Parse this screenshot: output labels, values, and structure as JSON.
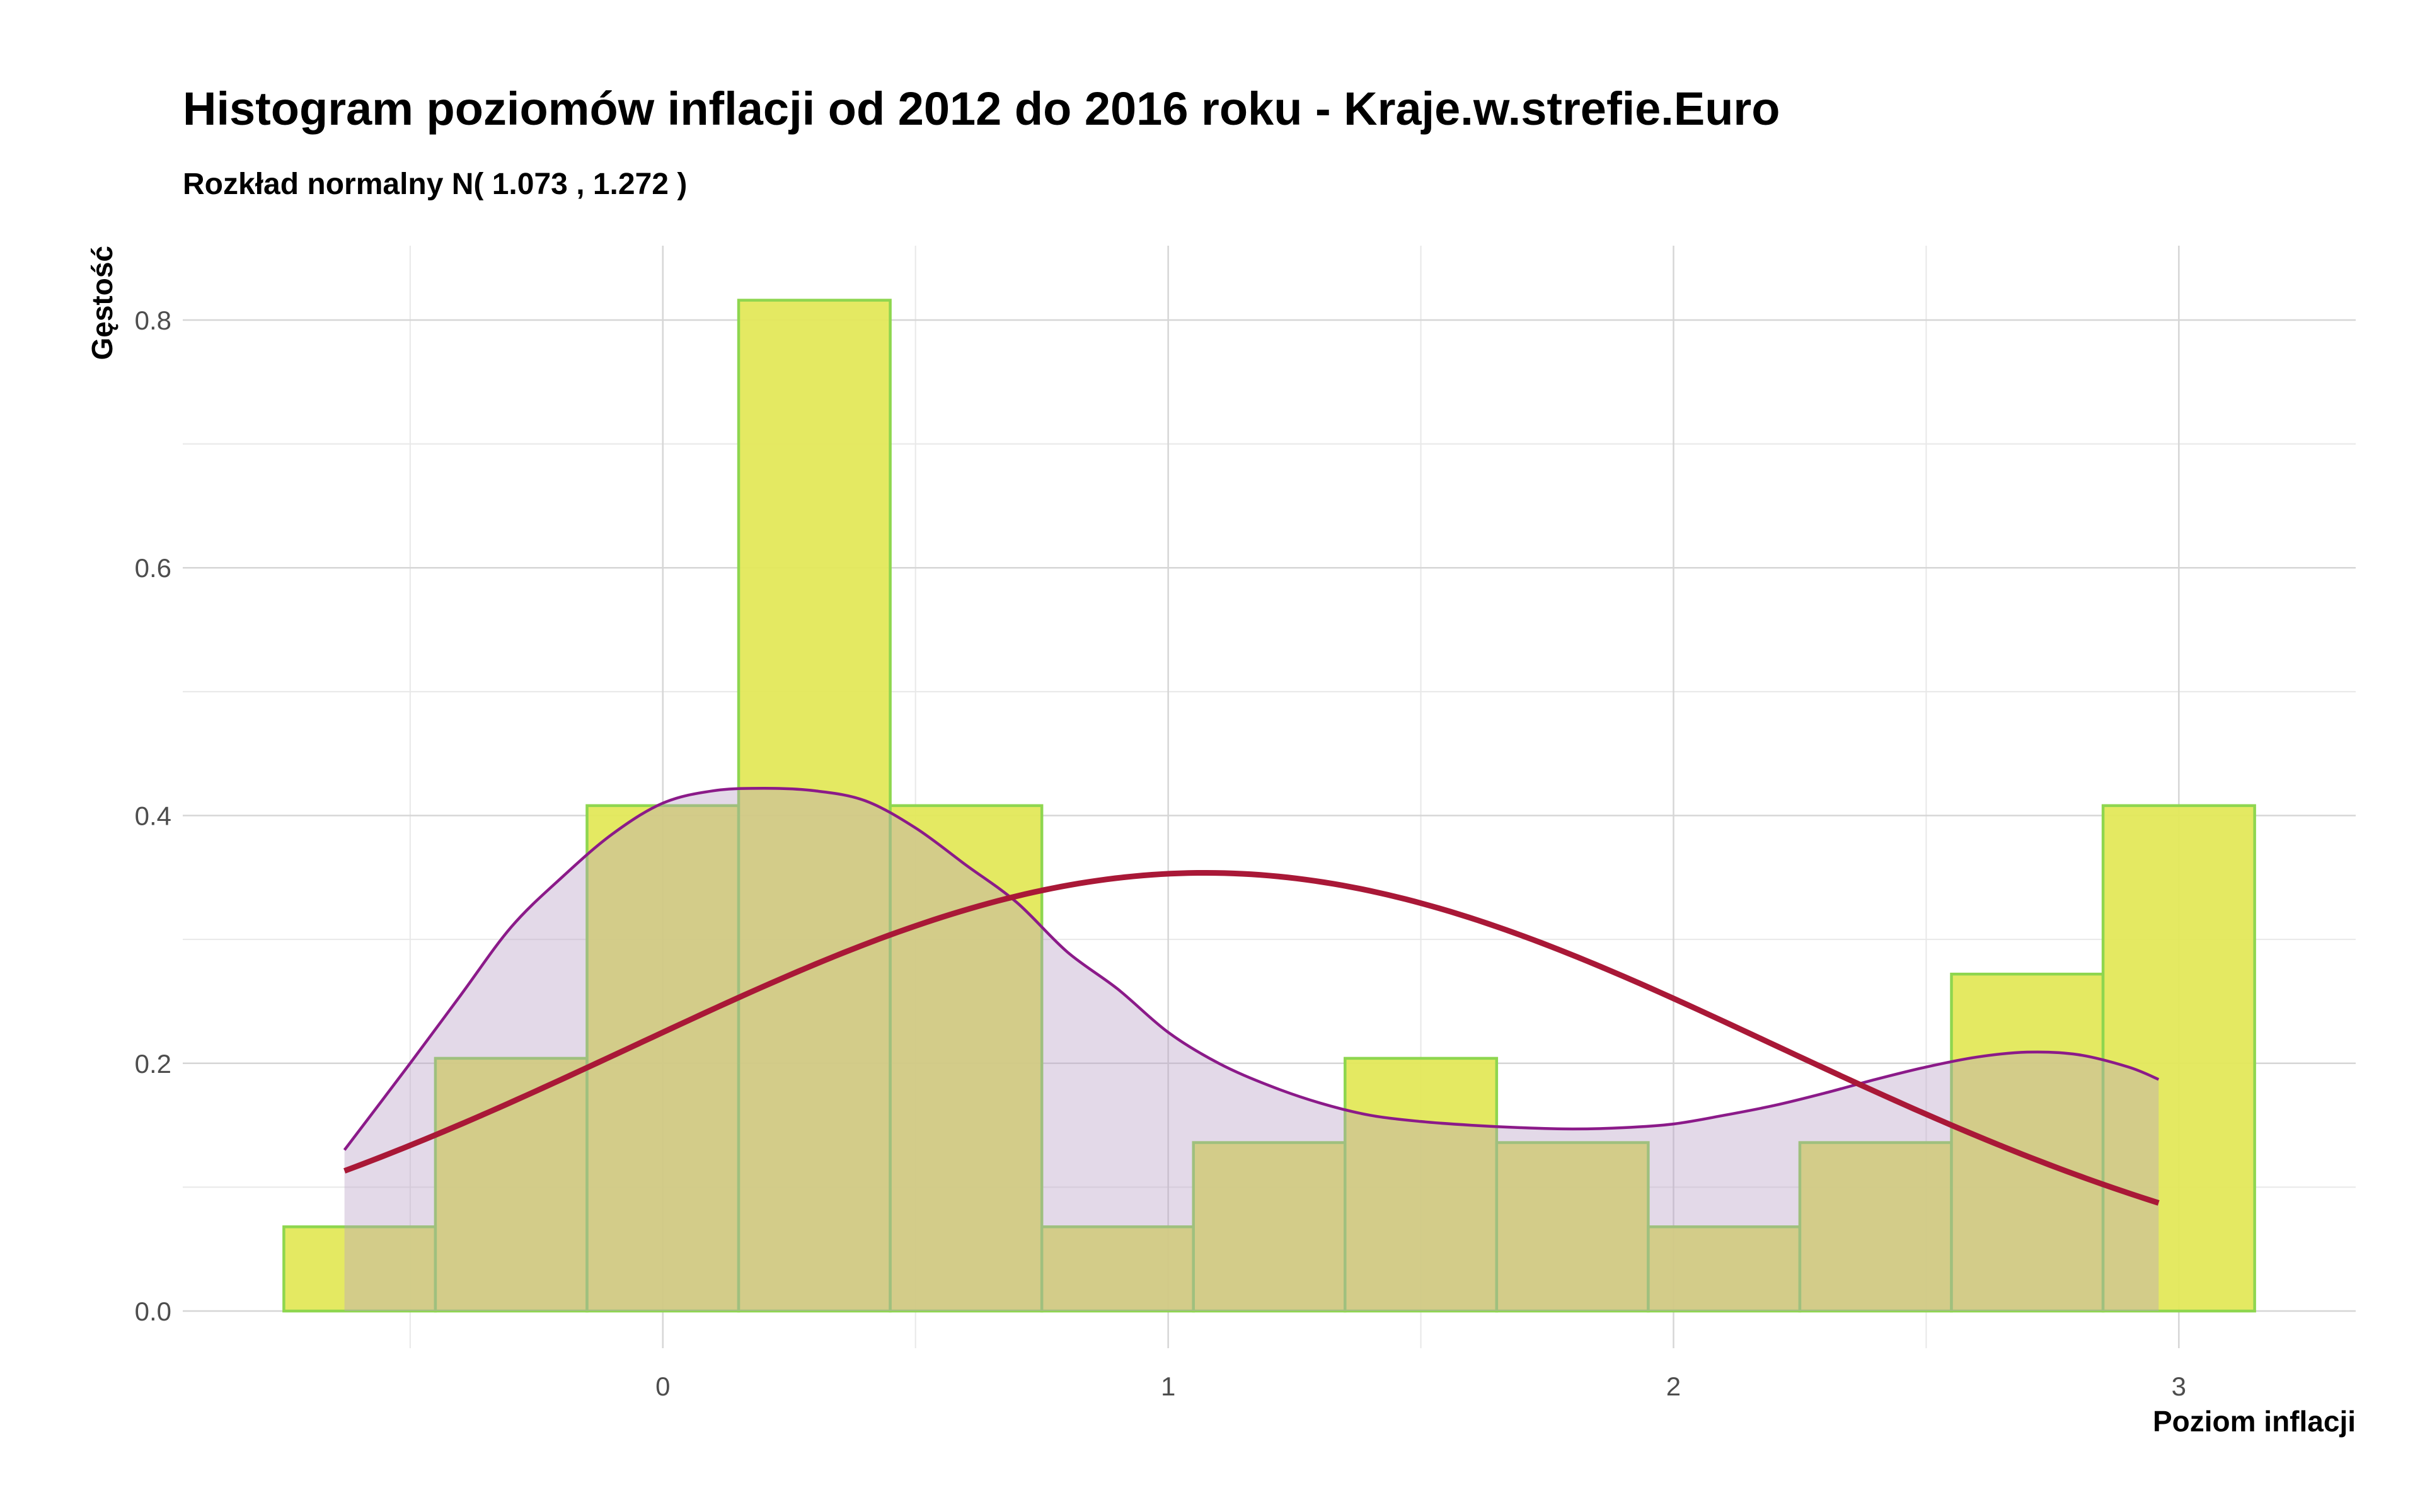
{
  "chart_data": {
    "type": "histogram",
    "title": "Histogram poziomów inflacji od 2012 do 2016 roku  -  Kraje.w.strefie.Euro",
    "subtitle": "Rozkład normalny N( 1.073 ,  1.272 )",
    "xlabel": "Poziom inflacji",
    "ylabel": "Gęstość",
    "xlim": [
      -0.95,
      3.35
    ],
    "ylim": [
      -0.03,
      0.86
    ],
    "x_ticks": [
      0,
      1,
      2,
      3
    ],
    "y_ticks": [
      0.0,
      0.2,
      0.4,
      0.6,
      0.8
    ],
    "x_tick_labels": [
      "0",
      "1",
      "2",
      "3"
    ],
    "y_tick_labels": [
      "0.0",
      "0.2",
      "0.4",
      "0.6",
      "0.8"
    ],
    "grid": true,
    "bins": [
      {
        "x0": -0.75,
        "x1": -0.45,
        "density": 0.068
      },
      {
        "x0": -0.45,
        "x1": -0.15,
        "density": 0.204
      },
      {
        "x0": -0.15,
        "x1": 0.15,
        "density": 0.408
      },
      {
        "x0": 0.15,
        "x1": 0.45,
        "density": 0.816
      },
      {
        "x0": 0.45,
        "x1": 0.75,
        "density": 0.408
      },
      {
        "x0": 0.75,
        "x1": 1.05,
        "density": 0.068
      },
      {
        "x0": 1.05,
        "x1": 1.35,
        "density": 0.136
      },
      {
        "x0": 1.35,
        "x1": 1.65,
        "density": 0.204
      },
      {
        "x0": 1.65,
        "x1": 1.95,
        "density": 0.136
      },
      {
        "x0": 1.95,
        "x1": 2.25,
        "density": 0.068
      },
      {
        "x0": 2.25,
        "x1": 2.55,
        "density": 0.136
      },
      {
        "x0": 2.55,
        "x1": 2.85,
        "density": 0.272
      },
      {
        "x0": 2.85,
        "x1": 3.15,
        "density": 0.408
      }
    ],
    "density_curve": {
      "x": [
        -0.63,
        -0.5,
        -0.4,
        -0.3,
        -0.2,
        -0.1,
        0.0,
        0.1,
        0.2,
        0.3,
        0.4,
        0.5,
        0.6,
        0.7,
        0.8,
        0.9,
        1.0,
        1.1,
        1.2,
        1.3,
        1.4,
        1.5,
        1.6,
        1.7,
        1.8,
        1.9,
        2.0,
        2.1,
        2.2,
        2.3,
        2.4,
        2.5,
        2.6,
        2.7,
        2.8,
        2.9,
        2.96
      ],
      "y": [
        0.13,
        0.2,
        0.255,
        0.31,
        0.35,
        0.385,
        0.41,
        0.42,
        0.422,
        0.42,
        0.412,
        0.39,
        0.36,
        0.33,
        0.29,
        0.26,
        0.225,
        0.2,
        0.182,
        0.168,
        0.158,
        0.153,
        0.15,
        0.148,
        0.147,
        0.148,
        0.151,
        0.158,
        0.166,
        0.176,
        0.187,
        0.197,
        0.205,
        0.209,
        0.207,
        0.197,
        0.187
      ]
    },
    "normal_curve": {
      "mean": 1.073,
      "x_range": [
        -0.63,
        2.96
      ]
    },
    "colors": {
      "hist_fill": "#e3e85a",
      "hist_stroke": "#8ed64f",
      "density_line": "#8b1a89",
      "density_fill": "#b9a1c6",
      "normal_line": "#a91837",
      "grid": "#d6d6d6"
    }
  }
}
